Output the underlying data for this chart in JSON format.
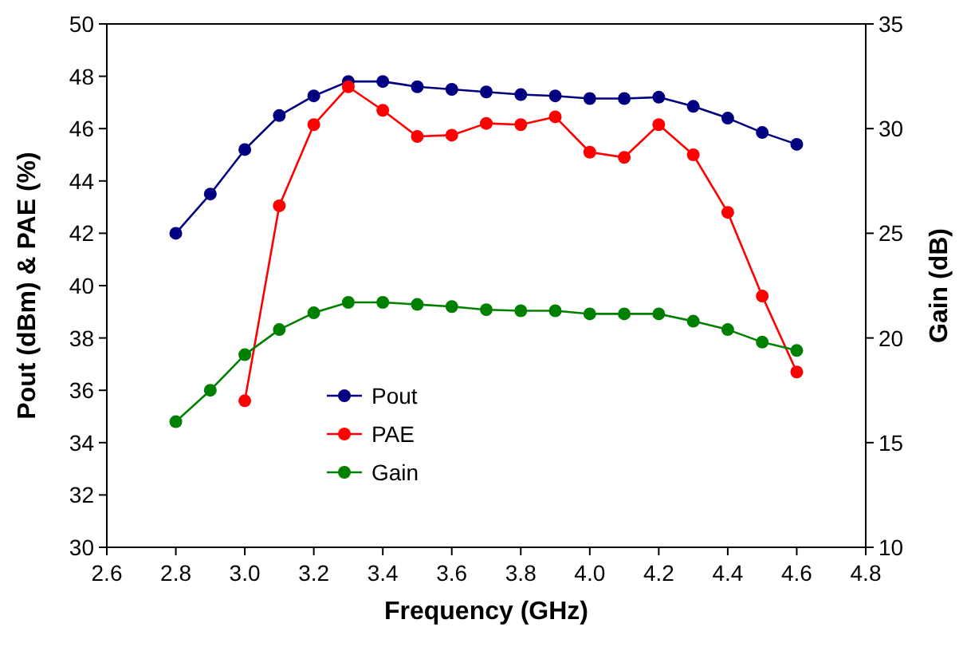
{
  "chart_data": {
    "type": "line",
    "xlabel": "Frequency (GHz)",
    "ylabel": "Pout (dBm) & PAE (%)",
    "y2label": "Gain (dB)",
    "x": [
      2.8,
      2.9,
      3.0,
      3.1,
      3.2,
      3.3,
      3.4,
      3.5,
      3.6,
      3.7,
      3.8,
      3.9,
      4.0,
      4.1,
      4.2,
      4.3,
      4.4,
      4.5,
      4.6
    ],
    "series": [
      {
        "name": "Pout",
        "color": "#000080",
        "values": [
          42.0,
          43.5,
          45.2,
          46.5,
          47.25,
          47.8,
          47.8,
          47.6,
          47.5,
          47.4,
          47.3,
          47.25,
          47.15,
          47.15,
          47.2,
          46.85,
          46.4,
          45.85,
          45.4
        ]
      },
      {
        "name": "PAE",
        "color": "#ff0000",
        "values": [
          null,
          null,
          35.6,
          43.05,
          46.15,
          47.6,
          46.7,
          45.7,
          45.75,
          46.2,
          46.15,
          46.45,
          45.1,
          44.9,
          46.15,
          45.0,
          42.8,
          39.6,
          36.7
        ]
      },
      {
        "name": "Gain",
        "color": "#008000",
        "axis": "y2",
        "values": [
          16.0,
          17.5,
          19.2,
          20.4,
          21.2,
          21.7,
          21.7,
          21.6,
          21.5,
          21.35,
          21.3,
          21.3,
          21.15,
          21.15,
          21.15,
          20.8,
          20.4,
          19.8,
          19.4
        ]
      }
    ],
    "xlim": [
      2.6,
      4.8
    ],
    "xticks": [
      2.6,
      2.8,
      {
        "value": 3,
        "label": "3.0"
      },
      3.2,
      3.4,
      3.6,
      3.8,
      {
        "value": 4,
        "label": "4.0"
      },
      4.2,
      4.4,
      4.6,
      4.8
    ],
    "ylim": [
      30,
      50
    ],
    "yticks": [
      30,
      32,
      34,
      36,
      38,
      40,
      42,
      44,
      46,
      48,
      50
    ],
    "y2lim": [
      10,
      35
    ],
    "y2ticks": [
      10,
      15,
      20,
      25,
      30,
      35
    ],
    "grid": false,
    "legend": "bottom",
    "marker": "circle",
    "line_style": "solid"
  }
}
